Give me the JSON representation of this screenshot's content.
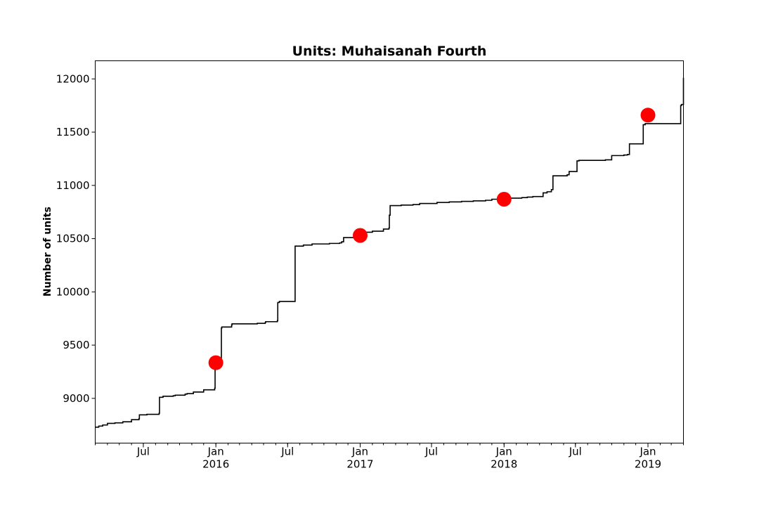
{
  "chart_data": {
    "type": "line",
    "title": "Units: Muhaisanah Fourth",
    "xlabel": "",
    "ylabel": "Number of units",
    "ylim": [
      8580,
      12170
    ],
    "xlim": [
      "2015-03-01",
      "2019-04-01"
    ],
    "y_ticks": [
      9000,
      9500,
      10000,
      10500,
      11000,
      11500,
      12000
    ],
    "x_major_ticks": [
      {
        "date": "2015-07-01",
        "label": "Jul",
        "sublabel": ""
      },
      {
        "date": "2016-01-01",
        "label": "Jan",
        "sublabel": "2016"
      },
      {
        "date": "2016-07-01",
        "label": "Jul",
        "sublabel": ""
      },
      {
        "date": "2017-01-01",
        "label": "Jan",
        "sublabel": "2017"
      },
      {
        "date": "2017-07-01",
        "label": "Jul",
        "sublabel": ""
      },
      {
        "date": "2018-01-01",
        "label": "Jan",
        "sublabel": "2018"
      },
      {
        "date": "2018-07-01",
        "label": "Jul",
        "sublabel": ""
      },
      {
        "date": "2019-01-01",
        "label": "Jan",
        "sublabel": "2019"
      }
    ],
    "grid": false,
    "legend": "none",
    "series": [
      {
        "color": "#000000",
        "step": true,
        "x": [
          "2015-03-01",
          "2015-03-10",
          "2015-03-20",
          "2015-04-01",
          "2015-04-20",
          "2015-05-10",
          "2015-06-01",
          "2015-06-20",
          "2015-06-21",
          "2015-07-10",
          "2015-08-10",
          "2015-08-11",
          "2015-08-20",
          "2015-09-15",
          "2015-09-20",
          "2015-10-15",
          "2015-10-20",
          "2015-11-05",
          "2015-12-01",
          "2015-12-29",
          "2015-12-30",
          "2016-01-15",
          "2016-01-16",
          "2016-02-10",
          "2016-02-11",
          "2016-04-15",
          "2016-05-05",
          "2016-05-06",
          "2016-06-05",
          "2016-06-06",
          "2016-06-10",
          "2016-07-20",
          "2016-08-10",
          "2016-09-01",
          "2016-10-15",
          "2016-11-10",
          "2016-11-15",
          "2016-11-20",
          "2017-01-01",
          "2017-01-15",
          "2017-02-01",
          "2017-03-01",
          "2017-03-15",
          "2017-03-16",
          "2017-03-18",
          "2017-04-15",
          "2017-05-15",
          "2017-06-01",
          "2017-07-15",
          "2017-08-15",
          "2017-09-15",
          "2017-10-15",
          "2017-11-15",
          "2017-12-01",
          "2017-12-20",
          "2018-01-15",
          "2018-02-15",
          "2018-03-01",
          "2018-03-15",
          "2018-04-10",
          "2018-04-20",
          "2018-05-01",
          "2018-05-05",
          "2018-06-10",
          "2018-06-15",
          "2018-07-05",
          "2018-07-10",
          "2018-09-15",
          "2018-10-01",
          "2018-11-01",
          "2018-11-10",
          "2018-11-15",
          "2018-12-20",
          "2018-12-25",
          "2019-03-25",
          "2019-03-27",
          "2019-04-01"
        ],
        "values": [
          8730,
          8740,
          8750,
          8765,
          8770,
          8780,
          8800,
          8810,
          8845,
          8850,
          8860,
          9010,
          9020,
          9025,
          9030,
          9040,
          9045,
          9060,
          9080,
          9095,
          9330,
          9660,
          9670,
          9690,
          9700,
          9705,
          9710,
          9720,
          9730,
          9900,
          9910,
          10430,
          10440,
          10450,
          10455,
          10460,
          10470,
          10510,
          10530,
          10560,
          10570,
          10590,
          10600,
          10720,
          10810,
          10815,
          10820,
          10830,
          10840,
          10845,
          10850,
          10855,
          10860,
          10870,
          10875,
          10880,
          10885,
          10890,
          10895,
          10930,
          10940,
          10960,
          11090,
          11100,
          11130,
          11230,
          11235,
          11240,
          11280,
          11285,
          11290,
          11390,
          11570,
          11580,
          11750,
          11760,
          12010
        ]
      }
    ],
    "markers": {
      "color": "#ff0000",
      "points": [
        {
          "x": "2016-01-01",
          "y": 9335
        },
        {
          "x": "2017-01-01",
          "y": 10530
        },
        {
          "x": "2018-01-01",
          "y": 10870
        },
        {
          "x": "2019-01-01",
          "y": 11660
        }
      ]
    }
  }
}
